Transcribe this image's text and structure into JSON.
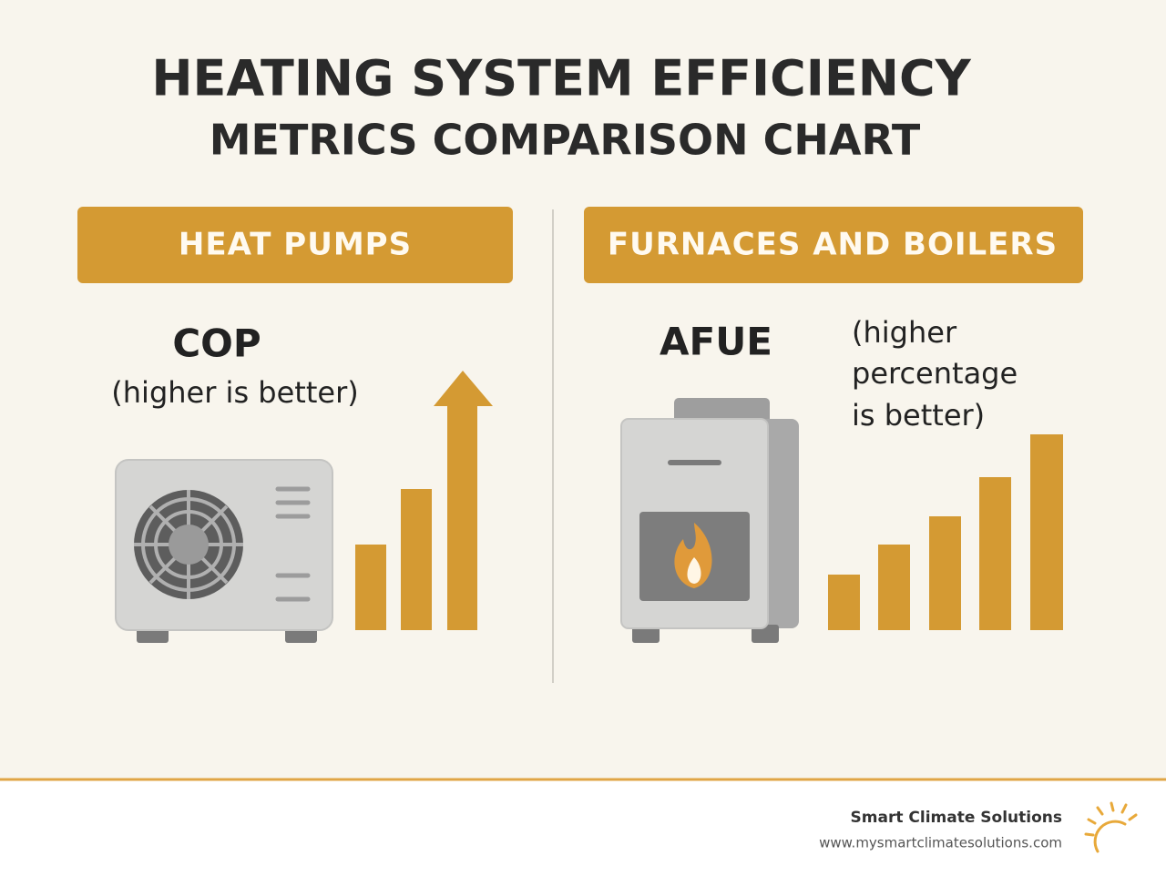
{
  "header": {
    "title_line_1": "HEATING SYSTEM EFFICIENCY",
    "title_line_2": "METRICS COMPARISON CHART"
  },
  "panels": [
    {
      "heading": "HEAT PUMPS",
      "metric": "COP",
      "note_lines": [
        "(higher is better)"
      ]
    },
    {
      "heading": "FURNACES AND BOILERS",
      "metric": "AFUE",
      "note_lines": [
        "(higher",
        "percentage",
        "is better)"
      ]
    }
  ],
  "footer": {
    "brand": "Smart Climate Solutions",
    "url": "www.mysmartclimatesolutions.com"
  }
}
